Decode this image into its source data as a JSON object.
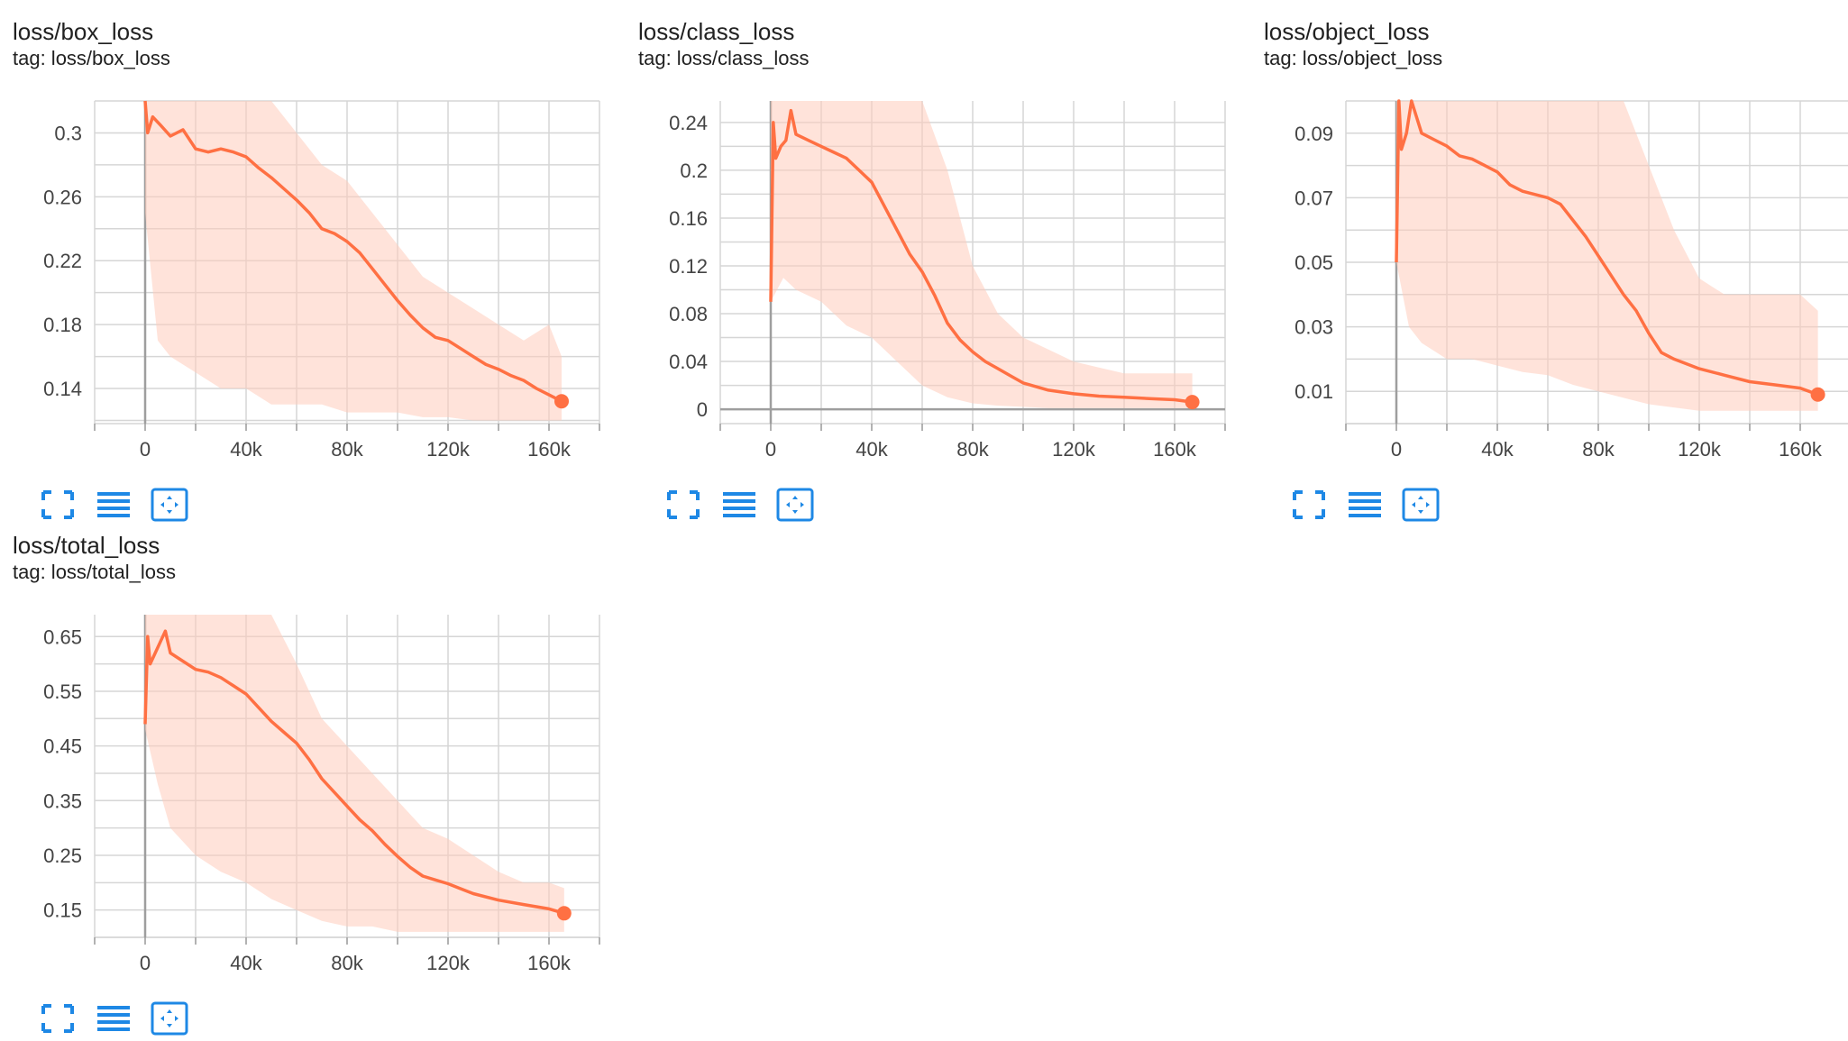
{
  "colors": {
    "accent": "#ff7043",
    "raw_band": "#ffccbc",
    "grid": "#d6d6d6",
    "axis_zero": "#9e9e9e",
    "tool_icons": "#1e88e5"
  },
  "toolbar_icons": [
    "fullscreen-icon",
    "toggle-log-scale-icon",
    "fit-domain-icon"
  ],
  "cards": [
    {
      "title": "loss/box_loss",
      "tag": "tag: loss/box_loss",
      "toolbar": {
        "fullscreen": "fullscreen-icon",
        "log_scale": "toggle-log-scale-icon",
        "fit": "fit-domain-icon"
      }
    },
    {
      "title": "loss/class_loss",
      "tag": "tag: loss/class_loss",
      "toolbar": {
        "fullscreen": "fullscreen-icon",
        "log_scale": "toggle-log-scale-icon",
        "fit": "fit-domain-icon"
      }
    },
    {
      "title": "loss/object_loss",
      "tag": "tag: loss/object_loss",
      "toolbar": {
        "fullscreen": "fullscreen-icon",
        "log_scale": "toggle-log-scale-icon",
        "fit": "fit-domain-icon"
      }
    },
    {
      "title": "loss/total_loss",
      "tag": "tag: loss/total_loss",
      "toolbar": {
        "fullscreen": "fullscreen-icon",
        "log_scale": "toggle-log-scale-icon",
        "fit": "fit-domain-icon"
      }
    }
  ],
  "chart_data": [
    {
      "type": "line",
      "title": "loss/box_loss",
      "xlabel": "",
      "ylabel": "",
      "xlim": [
        -20000,
        180000
      ],
      "ylim": [
        0.118,
        0.32
      ],
      "xticks": [
        0,
        40000,
        80000,
        120000,
        160000
      ],
      "xtick_labels": [
        "0",
        "40k",
        "80k",
        "120k",
        "160k"
      ],
      "yticks": [
        0.14,
        0.18,
        0.22,
        0.26,
        0.3
      ],
      "ytick_labels": [
        "0.14",
        "0.18",
        "0.22",
        "0.26",
        "0.3"
      ],
      "grid": true,
      "series": [
        {
          "x": [
            0,
            1000,
            3000,
            6000,
            10000,
            15000,
            20000,
            25000,
            30000,
            35000,
            40000,
            45000,
            50000,
            55000,
            60000,
            65000,
            70000,
            75000,
            80000,
            85000,
            90000,
            95000,
            100000,
            105000,
            110000,
            115000,
            120000,
            125000,
            130000,
            135000,
            140000,
            145000,
            150000,
            155000,
            160000,
            165000
          ],
          "y": [
            0.32,
            0.3,
            0.31,
            0.305,
            0.298,
            0.302,
            0.29,
            0.288,
            0.29,
            0.288,
            0.285,
            0.278,
            0.272,
            0.265,
            0.258,
            0.25,
            0.24,
            0.237,
            0.232,
            0.225,
            0.215,
            0.205,
            0.195,
            0.186,
            0.178,
            0.172,
            0.17,
            0.165,
            0.16,
            0.155,
            0.152,
            0.148,
            0.145,
            0.14,
            0.136,
            0.132
          ]
        }
      ],
      "raw_band": {
        "x": [
          0,
          5000,
          10000,
          20000,
          30000,
          40000,
          50000,
          60000,
          70000,
          80000,
          90000,
          100000,
          110000,
          120000,
          130000,
          140000,
          150000,
          160000,
          165000
        ],
        "low": [
          0.25,
          0.17,
          0.16,
          0.15,
          0.14,
          0.14,
          0.13,
          0.13,
          0.13,
          0.125,
          0.125,
          0.125,
          0.122,
          0.122,
          0.12,
          0.12,
          0.12,
          0.12,
          0.12
        ],
        "high": [
          0.32,
          0.32,
          0.32,
          0.32,
          0.32,
          0.32,
          0.32,
          0.3,
          0.28,
          0.27,
          0.25,
          0.23,
          0.21,
          0.2,
          0.19,
          0.18,
          0.17,
          0.18,
          0.16
        ]
      }
    },
    {
      "type": "line",
      "title": "loss/class_loss",
      "xlabel": "",
      "ylabel": "",
      "xlim": [
        -20000,
        180000
      ],
      "ylim": [
        -0.012,
        0.258
      ],
      "xticks": [
        0,
        40000,
        80000,
        120000,
        160000
      ],
      "xtick_labels": [
        "0",
        "40k",
        "80k",
        "120k",
        "160k"
      ],
      "yticks": [
        0,
        0.04,
        0.08,
        0.12,
        0.16,
        0.2,
        0.24
      ],
      "ytick_labels": [
        "0",
        "0.04",
        "0.08",
        "0.12",
        "0.16",
        "0.2",
        "0.24"
      ],
      "grid": true,
      "series": [
        {
          "x": [
            0,
            1000,
            2000,
            4000,
            6000,
            8000,
            10000,
            15000,
            20000,
            25000,
            30000,
            35000,
            40000,
            45000,
            50000,
            55000,
            60000,
            65000,
            70000,
            75000,
            80000,
            85000,
            90000,
            95000,
            100000,
            110000,
            120000,
            130000,
            140000,
            150000,
            160000,
            167000
          ],
          "y": [
            0.09,
            0.24,
            0.21,
            0.22,
            0.225,
            0.25,
            0.23,
            0.225,
            0.22,
            0.215,
            0.21,
            0.2,
            0.19,
            0.17,
            0.15,
            0.13,
            0.115,
            0.095,
            0.072,
            0.058,
            0.048,
            0.04,
            0.034,
            0.028,
            0.022,
            0.016,
            0.013,
            0.011,
            0.01,
            0.009,
            0.008,
            0.006
          ]
        }
      ],
      "raw_band": {
        "x": [
          0,
          5000,
          10000,
          20000,
          30000,
          40000,
          50000,
          60000,
          70000,
          80000,
          90000,
          100000,
          110000,
          120000,
          130000,
          140000,
          150000,
          160000,
          167000
        ],
        "low": [
          0.09,
          0.11,
          0.1,
          0.09,
          0.07,
          0.06,
          0.04,
          0.02,
          0.01,
          0.005,
          0.003,
          0.002,
          0.001,
          0.001,
          0.001,
          0.001,
          0.001,
          0.001,
          0.001
        ],
        "high": [
          0.258,
          0.258,
          0.258,
          0.258,
          0.258,
          0.258,
          0.258,
          0.258,
          0.2,
          0.12,
          0.08,
          0.06,
          0.05,
          0.04,
          0.035,
          0.03,
          0.03,
          0.03,
          0.03
        ]
      }
    },
    {
      "type": "line",
      "title": "loss/object_loss",
      "xlabel": "",
      "ylabel": "",
      "xlim": [
        -20000,
        180000
      ],
      "ylim": [
        0.0,
        0.1
      ],
      "xticks": [
        0,
        40000,
        80000,
        120000,
        160000
      ],
      "xtick_labels": [
        "0",
        "40k",
        "80k",
        "120k",
        "160k"
      ],
      "yticks": [
        0.01,
        0.03,
        0.05,
        0.07,
        0.09
      ],
      "ytick_labels": [
        "0.01",
        "0.03",
        "0.05",
        "0.07",
        "0.09"
      ],
      "grid": true,
      "series": [
        {
          "x": [
            0,
            1000,
            2000,
            4000,
            6000,
            8000,
            10000,
            15000,
            20000,
            25000,
            30000,
            35000,
            40000,
            45000,
            50000,
            55000,
            60000,
            65000,
            70000,
            75000,
            80000,
            85000,
            90000,
            95000,
            100000,
            105000,
            110000,
            120000,
            130000,
            140000,
            150000,
            160000,
            167000
          ],
          "y": [
            0.05,
            0.1,
            0.085,
            0.09,
            0.1,
            0.095,
            0.09,
            0.088,
            0.086,
            0.083,
            0.082,
            0.08,
            0.078,
            0.074,
            0.072,
            0.071,
            0.07,
            0.068,
            0.063,
            0.058,
            0.052,
            0.046,
            0.04,
            0.035,
            0.028,
            0.022,
            0.02,
            0.017,
            0.015,
            0.013,
            0.012,
            0.011,
            0.009
          ]
        }
      ],
      "raw_band": {
        "x": [
          0,
          5000,
          10000,
          20000,
          30000,
          40000,
          50000,
          60000,
          70000,
          80000,
          90000,
          100000,
          110000,
          120000,
          130000,
          140000,
          150000,
          160000,
          167000
        ],
        "low": [
          0.05,
          0.03,
          0.025,
          0.02,
          0.02,
          0.018,
          0.016,
          0.015,
          0.012,
          0.01,
          0.008,
          0.006,
          0.005,
          0.004,
          0.004,
          0.004,
          0.004,
          0.004,
          0.004
        ],
        "high": [
          0.1,
          0.1,
          0.1,
          0.1,
          0.1,
          0.1,
          0.1,
          0.1,
          0.1,
          0.1,
          0.1,
          0.08,
          0.06,
          0.045,
          0.04,
          0.04,
          0.04,
          0.04,
          0.035
        ]
      }
    },
    {
      "type": "line",
      "title": "loss/total_loss",
      "xlabel": "",
      "ylabel": "",
      "xlim": [
        -20000,
        180000
      ],
      "ylim": [
        0.1,
        0.69
      ],
      "xticks": [
        0,
        40000,
        80000,
        120000,
        160000
      ],
      "xtick_labels": [
        "0",
        "40k",
        "80k",
        "120k",
        "160k"
      ],
      "yticks": [
        0.15,
        0.25,
        0.35,
        0.45,
        0.55,
        0.65
      ],
      "ytick_labels": [
        "0.15",
        "0.25",
        "0.35",
        "0.45",
        "0.55",
        "0.65"
      ],
      "grid": true,
      "series": [
        {
          "x": [
            0,
            1000,
            2000,
            4000,
            6000,
            8000,
            10000,
            15000,
            20000,
            25000,
            30000,
            35000,
            40000,
            45000,
            50000,
            55000,
            60000,
            65000,
            70000,
            75000,
            80000,
            85000,
            90000,
            95000,
            100000,
            105000,
            110000,
            115000,
            120000,
            130000,
            140000,
            150000,
            160000,
            166000
          ],
          "y": [
            0.49,
            0.65,
            0.6,
            0.62,
            0.64,
            0.66,
            0.62,
            0.605,
            0.59,
            0.585,
            0.575,
            0.56,
            0.545,
            0.52,
            0.495,
            0.475,
            0.455,
            0.425,
            0.39,
            0.365,
            0.34,
            0.315,
            0.295,
            0.27,
            0.248,
            0.228,
            0.212,
            0.205,
            0.198,
            0.18,
            0.168,
            0.16,
            0.152,
            0.144
          ]
        }
      ],
      "raw_band": {
        "x": [
          0,
          5000,
          10000,
          20000,
          30000,
          40000,
          50000,
          60000,
          70000,
          80000,
          90000,
          100000,
          110000,
          120000,
          130000,
          140000,
          150000,
          160000,
          166000
        ],
        "low": [
          0.48,
          0.38,
          0.3,
          0.25,
          0.22,
          0.2,
          0.17,
          0.15,
          0.13,
          0.12,
          0.12,
          0.11,
          0.11,
          0.11,
          0.11,
          0.11,
          0.11,
          0.11,
          0.11
        ],
        "high": [
          0.69,
          0.69,
          0.69,
          0.69,
          0.69,
          0.69,
          0.69,
          0.6,
          0.5,
          0.45,
          0.4,
          0.35,
          0.3,
          0.28,
          0.25,
          0.22,
          0.2,
          0.2,
          0.19
        ]
      }
    }
  ]
}
